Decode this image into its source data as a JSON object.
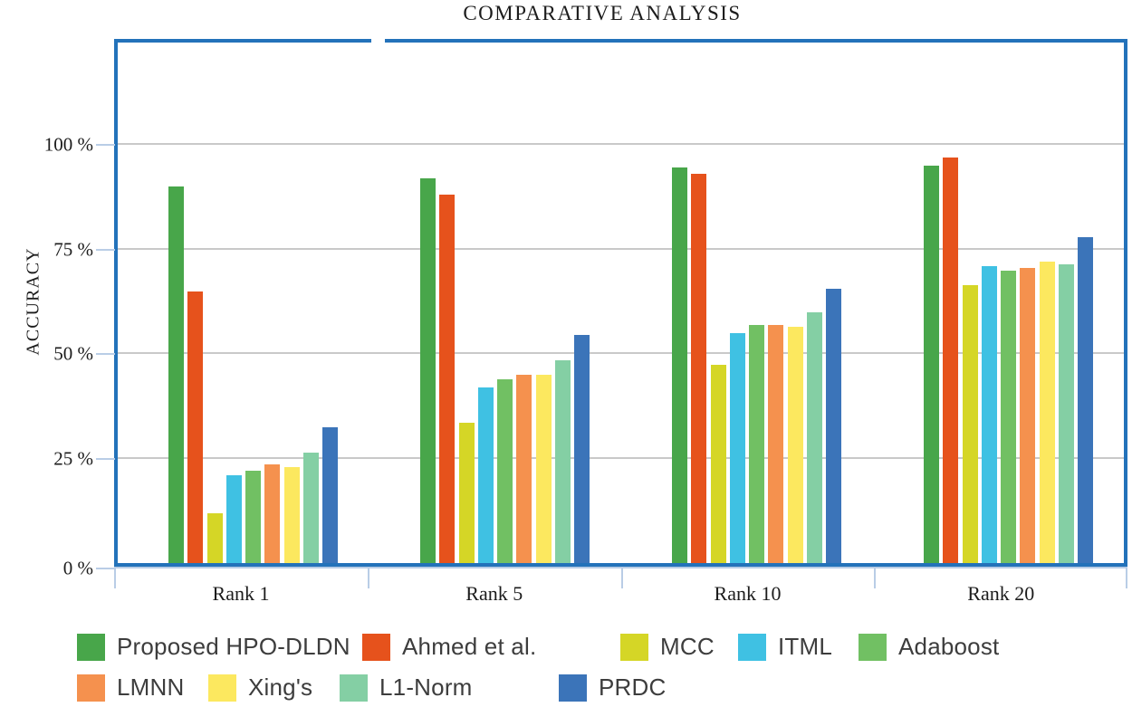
{
  "chart_data": {
    "type": "bar",
    "title": "COMPARATIVE ANALYSIS",
    "xlabel": "",
    "ylabel": "ACCURACY",
    "categories": [
      "Rank 1",
      "Rank 5",
      "Rank 10",
      "Rank 20"
    ],
    "series": [
      {
        "name": "Proposed HPO-DLDN",
        "color": "#48a64a",
        "values": [
          90,
          92,
          94.5,
          95
        ]
      },
      {
        "name": "Ahmed et al.",
        "color": "#e6521c",
        "values": [
          65,
          88,
          93,
          97
        ]
      },
      {
        "name": "MCC",
        "color": "#d5d626",
        "values": [
          12,
          33.5,
          47.5,
          66.5
        ]
      },
      {
        "name": "ITML",
        "color": "#3fc1e3",
        "values": [
          21,
          42,
          55,
          71
        ]
      },
      {
        "name": "Adaboost",
        "color": "#71c063",
        "values": [
          22,
          44,
          57,
          70
        ]
      },
      {
        "name": "LMNN",
        "color": "#f5914e",
        "values": [
          23.5,
          45,
          57,
          70.5
        ]
      },
      {
        "name": "Xing's",
        "color": "#fce85f",
        "values": [
          23,
          45,
          56.5,
          72
        ]
      },
      {
        "name": "L1-Norm",
        "color": "#84cfa4",
        "values": [
          26.5,
          48.5,
          60,
          71.5
        ]
      },
      {
        "name": "PRDC",
        "color": "#3b74b9",
        "values": [
          32.5,
          54.5,
          65.5,
          78
        ]
      }
    ],
    "yticks": [
      {
        "label": "0 %",
        "value": 0
      },
      {
        "label": "25 %",
        "value": 25
      },
      {
        "label": "50 %",
        "value": 50
      },
      {
        "label": "75 %",
        "value": 75
      },
      {
        "label": "100 %",
        "value": 100
      }
    ],
    "ylim": [
      0,
      124
    ],
    "grid": "horizontal",
    "legend_position": "bottom",
    "legend_rows": [
      [
        "Proposed HPO-DLDN",
        "Ahmed et al.",
        "MCC",
        "ITML",
        "Adaboost"
      ],
      [
        "LMNN",
        "Xing's",
        "L1-Norm",
        "PRDC"
      ]
    ],
    "colors": {
      "frame": "#2372ba",
      "axis_accent": "#b9cde6",
      "gridline": "#c9c9c9",
      "text": "#1c1c1c",
      "legend_text": "#3d3d3d"
    }
  }
}
